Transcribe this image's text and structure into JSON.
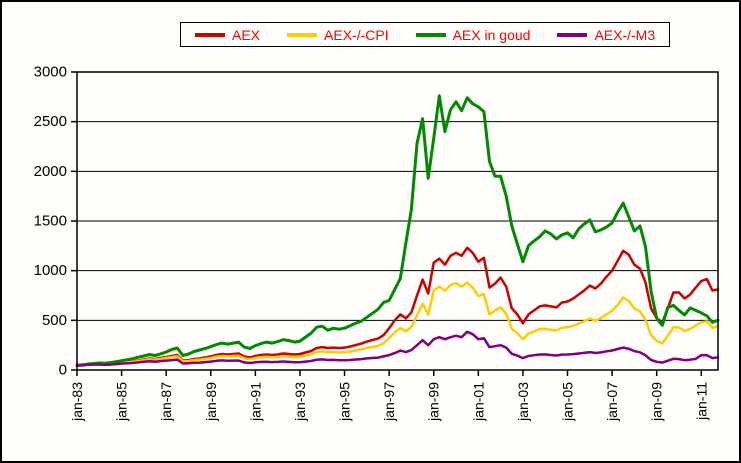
{
  "window": {
    "background": "#fffefb",
    "border_color": "#000000"
  },
  "chart_data": {
    "type": "line",
    "title": "",
    "xlabel": "",
    "ylabel": "",
    "grid": "horizontal",
    "grid_color": "#000000",
    "axis_color": "#000000",
    "tick_text_color": "#000000",
    "legend_position": "top-center",
    "legend_text_color": "#ff0000",
    "legend_border_color": "#000000",
    "ylim": [
      0,
      3000
    ],
    "y_ticks": [
      0,
      500,
      1000,
      1500,
      2000,
      2500,
      3000
    ],
    "xlim": [
      1983.0,
      2011.75
    ],
    "x_tick_years": [
      1983,
      1985,
      1987,
      1989,
      1991,
      1993,
      1995,
      1997,
      1999,
      2001,
      2003,
      2005,
      2007,
      2009,
      2011
    ],
    "x_tick_labels": [
      "jan-83",
      "jan-85",
      "jan-87",
      "jan-89",
      "jan-91",
      "jan-93",
      "jan-95",
      "jan-97",
      "jan-99",
      "jan-01",
      "jan-03",
      "jan-05",
      "jan-07",
      "jan-09",
      "jan-11"
    ],
    "x_start": 1983.0,
    "x_step": 0.25,
    "series": [
      {
        "name": "AEX",
        "color": "#cc0000",
        "stroke_width": 2.5,
        "values": [
          45,
          48,
          55,
          58,
          60,
          57,
          61,
          68,
          76,
          81,
          86,
          96,
          106,
          116,
          111,
          121,
          131,
          141,
          152,
          95,
          100,
          111,
          116,
          126,
          136,
          151,
          161,
          156,
          161,
          166,
          136,
          126,
          141,
          151,
          156,
          151,
          156,
          166,
          161,
          156,
          161,
          176,
          191,
          221,
          231,
          221,
          226,
          221,
          226,
          236,
          251,
          266,
          286,
          301,
          316,
          351,
          420,
          500,
          560,
          520,
          580,
          750,
          910,
          770,
          1080,
          1120,
          1060,
          1150,
          1180,
          1150,
          1230,
          1180,
          1090,
          1130,
          830,
          870,
          930,
          840,
          620,
          560,
          470,
          560,
          600,
          640,
          650,
          640,
          630,
          680,
          690,
          720,
          760,
          800,
          850,
          820,
          870,
          940,
          1000,
          1100,
          1200,
          1160,
          1060,
          1020,
          880,
          620,
          520,
          480,
          620,
          780,
          780,
          720,
          760,
          830,
          895,
          915,
          800,
          810
        ]
      },
      {
        "name": "AEX-/-CPI",
        "color": "#ffcc00",
        "stroke_width": 2.5,
        "values": [
          45,
          47,
          54,
          57,
          59,
          56,
          60,
          66,
          73,
          78,
          82,
          91,
          100,
          109,
          104,
          113,
          122,
          130,
          140,
          87,
          91,
          101,
          105,
          113,
          121,
          134,
          142,
          137,
          141,
          144,
          118,
          109,
          121,
          129,
          133,
          128,
          132,
          139,
          134,
          129,
          133,
          145,
          156,
          180,
          187,
          178,
          181,
          176,
          179,
          186,
          197,
          208,
          222,
          233,
          243,
          269,
          320,
          380,
          422,
          390,
          432,
          555,
          665,
          560,
          800,
          840,
          800,
          855,
          875,
          840,
          880,
          830,
          745,
          765,
          560,
          600,
          630,
          565,
          415,
          370,
          310,
          365,
          390,
          412,
          415,
          405,
          398,
          425,
          430,
          445,
          468,
          490,
          518,
          495,
          522,
          560,
          595,
          655,
          730,
          695,
          618,
          590,
          505,
          352,
          292,
          268,
          345,
          430,
          428,
          392,
          412,
          448,
          480,
          490,
          425,
          440
        ]
      },
      {
        "name": "AEX in goud",
        "color": "#008a00",
        "stroke_width": 3,
        "values": [
          48,
          52,
          60,
          65,
          70,
          67,
          74,
          84,
          94,
          104,
          114,
          129,
          141,
          156,
          146,
          162,
          181,
          206,
          221,
          146,
          161,
          186,
          201,
          216,
          236,
          256,
          271,
          261,
          271,
          281,
          231,
          216,
          246,
          266,
          281,
          271,
          286,
          306,
          296,
          281,
          291,
          331,
          371,
          431,
          441,
          401,
          421,
          411,
          421,
          446,
          471,
          491,
          531,
          571,
          611,
          681,
          700,
          810,
          920,
          1280,
          1620,
          2280,
          2530,
          1930,
          2330,
          2760,
          2400,
          2620,
          2700,
          2610,
          2740,
          2680,
          2650,
          2600,
          2100,
          1950,
          1950,
          1750,
          1450,
          1270,
          1090,
          1250,
          1300,
          1340,
          1400,
          1370,
          1320,
          1360,
          1380,
          1330,
          1420,
          1470,
          1510,
          1390,
          1410,
          1440,
          1480,
          1590,
          1680,
          1540,
          1400,
          1450,
          1240,
          790,
          520,
          450,
          630,
          650,
          600,
          555,
          625,
          600,
          575,
          545,
          480,
          500
        ]
      },
      {
        "name": "AEX-/-M3",
        "color": "#800080",
        "stroke_width": 2.5,
        "values": [
          44,
          46,
          52,
          54,
          55,
          51,
          54,
          59,
          64,
          67,
          70,
          77,
          83,
          89,
          84,
          90,
          95,
          100,
          105,
          65,
          67,
          73,
          75,
          80,
          85,
          93,
          97,
          93,
          95,
          96,
          77,
          70,
          78,
          82,
          84,
          80,
          82,
          86,
          82,
          78,
          79,
          85,
          91,
          104,
          107,
          101,
          102,
          98,
          98,
          101,
          106,
          110,
          117,
          121,
          125,
          137,
          150,
          170,
          195,
          180,
          200,
          250,
          300,
          250,
          310,
          330,
          310,
          330,
          345,
          330,
          385,
          360,
          310,
          320,
          230,
          240,
          250,
          225,
          163,
          145,
          120,
          141,
          149,
          156,
          157,
          151,
          146,
          155,
          156,
          160,
          166,
          172,
          180,
          171,
          177,
          188,
          196,
          211,
          225,
          213,
          190,
          178,
          148,
          101,
          83,
          75,
          94,
          113,
          110,
          99,
          104,
          112,
          150,
          148,
          120,
          128
        ]
      }
    ]
  }
}
